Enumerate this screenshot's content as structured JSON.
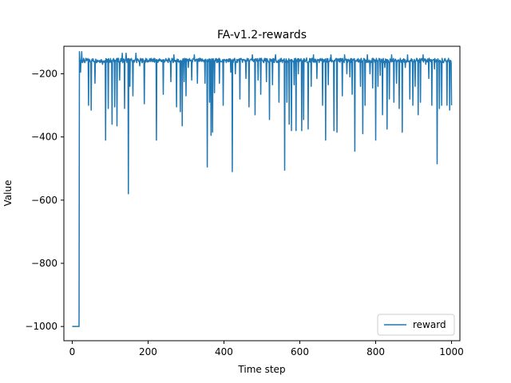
{
  "chart_data": {
    "type": "line",
    "title": "FA-v1.2-rewards",
    "xlabel": "Time step",
    "ylabel": "Value",
    "xlim": [
      -22,
      1022
    ],
    "ylim": [
      -1045,
      -113
    ],
    "xticks": [
      0,
      200,
      400,
      600,
      800,
      1000
    ],
    "yticks": [
      -1000,
      -800,
      -600,
      -400,
      -200
    ],
    "xtick_labels": [
      "0",
      "200",
      "400",
      "600",
      "800",
      "1000"
    ],
    "ytick_labels": [
      "−1000",
      "−800",
      "−600",
      "−400",
      "−200"
    ],
    "grid": false,
    "legend_position": "lower right",
    "series": [
      {
        "name": "reward",
        "color": "#1f77b4",
        "baseline": -158,
        "x_start": 0,
        "x_end": 1000,
        "initial_segment": {
          "x_start": 0,
          "x_end": 18,
          "value": -1000
        },
        "rise_at": 19,
        "dips": [
          [
            19,
            -130
          ],
          [
            22,
            -195
          ],
          [
            25,
            -130
          ],
          [
            33,
            -165
          ],
          [
            43,
            -300
          ],
          [
            50,
            -315
          ],
          [
            60,
            -230
          ],
          [
            70,
            -160
          ],
          [
            80,
            -170
          ],
          [
            88,
            -410
          ],
          [
            95,
            -310
          ],
          [
            105,
            -360
          ],
          [
            112,
            -305
          ],
          [
            118,
            -365
          ],
          [
            125,
            -220
          ],
          [
            132,
            -135
          ],
          [
            138,
            -310
          ],
          [
            142,
            -135
          ],
          [
            148,
            -580
          ],
          [
            152,
            -240
          ],
          [
            160,
            -270
          ],
          [
            168,
            -135
          ],
          [
            178,
            -175
          ],
          [
            190,
            -295
          ],
          [
            200,
            -160
          ],
          [
            210,
            -155
          ],
          [
            222,
            -410
          ],
          [
            228,
            -155
          ],
          [
            240,
            -265
          ],
          [
            250,
            -160
          ],
          [
            260,
            -225
          ],
          [
            268,
            -140
          ],
          [
            275,
            -305
          ],
          [
            280,
            -155
          ],
          [
            285,
            -320
          ],
          [
            290,
            -365
          ],
          [
            295,
            -225
          ],
          [
            300,
            -270
          ],
          [
            306,
            -180
          ],
          [
            315,
            -220
          ],
          [
            322,
            -140
          ],
          [
            330,
            -230
          ],
          [
            340,
            -160
          ],
          [
            350,
            -230
          ],
          [
            356,
            -495
          ],
          [
            362,
            -290
          ],
          [
            366,
            -395
          ],
          [
            370,
            -385
          ],
          [
            375,
            -260
          ],
          [
            382,
            -155
          ],
          [
            388,
            -230
          ],
          [
            398,
            -300
          ],
          [
            408,
            -155
          ],
          [
            418,
            -195
          ],
          [
            422,
            -510
          ],
          [
            430,
            -200
          ],
          [
            442,
            -280
          ],
          [
            450,
            -155
          ],
          [
            458,
            -215
          ],
          [
            466,
            -305
          ],
          [
            475,
            -140
          ],
          [
            482,
            -330
          ],
          [
            490,
            -220
          ],
          [
            497,
            -265
          ],
          [
            505,
            -165
          ],
          [
            512,
            -225
          ],
          [
            520,
            -345
          ],
          [
            528,
            -235
          ],
          [
            536,
            -140
          ],
          [
            545,
            -290
          ],
          [
            552,
            -160
          ],
          [
            560,
            -505
          ],
          [
            566,
            -290
          ],
          [
            572,
            -360
          ],
          [
            578,
            -380
          ],
          [
            585,
            -235
          ],
          [
            590,
            -380
          ],
          [
            596,
            -200
          ],
          [
            605,
            -380
          ],
          [
            610,
            -345
          ],
          [
            618,
            -150
          ],
          [
            622,
            -375
          ],
          [
            630,
            -240
          ],
          [
            636,
            -140
          ],
          [
            645,
            -215
          ],
          [
            652,
            -155
          ],
          [
            660,
            -300
          ],
          [
            668,
            -410
          ],
          [
            675,
            -235
          ],
          [
            682,
            -140
          ],
          [
            690,
            -380
          ],
          [
            698,
            -385
          ],
          [
            704,
            -155
          ],
          [
            712,
            -270
          ],
          [
            718,
            -140
          ],
          [
            724,
            -200
          ],
          [
            732,
            -210
          ],
          [
            738,
            -265
          ],
          [
            745,
            -445
          ],
          [
            752,
            -155
          ],
          [
            760,
            -240
          ],
          [
            766,
            -390
          ],
          [
            772,
            -300
          ],
          [
            778,
            -140
          ],
          [
            785,
            -200
          ],
          [
            792,
            -245
          ],
          [
            800,
            -410
          ],
          [
            806,
            -240
          ],
          [
            812,
            -205
          ],
          [
            818,
            -330
          ],
          [
            824,
            -180
          ],
          [
            830,
            -375
          ],
          [
            836,
            -280
          ],
          [
            842,
            -140
          ],
          [
            848,
            -290
          ],
          [
            855,
            -230
          ],
          [
            862,
            -310
          ],
          [
            870,
            -385
          ],
          [
            878,
            -180
          ],
          [
            884,
            -140
          ],
          [
            890,
            -280
          ],
          [
            898,
            -300
          ],
          [
            904,
            -240
          ],
          [
            912,
            -330
          ],
          [
            918,
            -290
          ],
          [
            925,
            -140
          ],
          [
            932,
            -170
          ],
          [
            940,
            -215
          ],
          [
            948,
            -300
          ],
          [
            955,
            -185
          ],
          [
            962,
            -485
          ],
          [
            968,
            -310
          ],
          [
            974,
            -300
          ],
          [
            980,
            -160
          ],
          [
            988,
            -300
          ],
          [
            995,
            -315
          ],
          [
            1000,
            -300
          ]
        ]
      }
    ]
  }
}
